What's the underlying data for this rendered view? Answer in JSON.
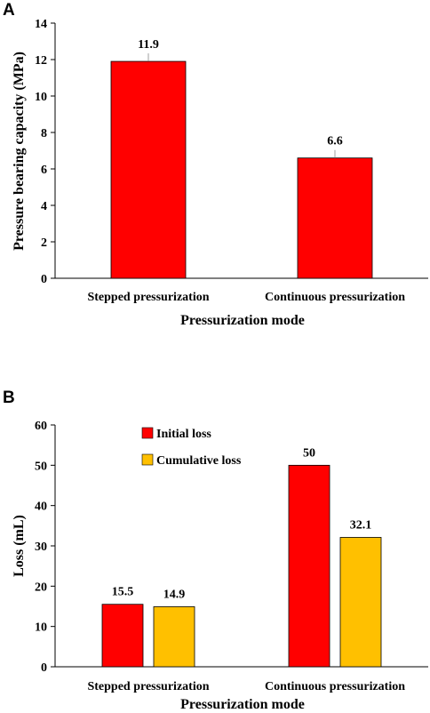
{
  "chart_data": [
    {
      "panel": "A",
      "type": "bar",
      "categories": [
        "Stepped pressurization",
        "Continuous pressurization"
      ],
      "series": [
        {
          "values": [
            11.9,
            6.6
          ],
          "color": "#ff0000"
        }
      ],
      "data_labels": [
        "11.9",
        "6.6"
      ],
      "xlabel": "Pressurization mode",
      "ylabel": "Pressure bearing capacity (MPa)",
      "ylim": [
        0,
        14
      ],
      "yticks": [
        0,
        2,
        4,
        6,
        8,
        10,
        12,
        14
      ],
      "grid": false,
      "legend": "none"
    },
    {
      "panel": "B",
      "type": "bar",
      "categories": [
        "Stepped pressurization",
        "Continuous pressurization"
      ],
      "series": [
        {
          "name": "Initial loss",
          "values": [
            15.5,
            50
          ],
          "color": "#ff0000"
        },
        {
          "name": "Cumulative loss",
          "values": [
            14.9,
            32.1
          ],
          "color": "#ffc000"
        }
      ],
      "data_labels": [
        [
          "15.5",
          "50"
        ],
        [
          "14.9",
          "32.1"
        ]
      ],
      "xlabel": "Pressurization mode",
      "ylabel": "Loss (mL)",
      "ylim": [
        0,
        60
      ],
      "yticks": [
        0,
        10,
        20,
        30,
        40,
        50,
        60
      ],
      "grid": false,
      "legend": "top-left"
    }
  ]
}
